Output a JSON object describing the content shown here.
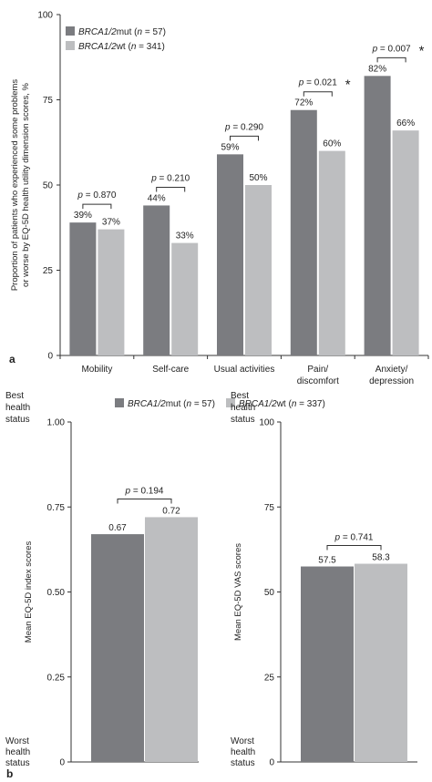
{
  "chart_data": [
    {
      "panel": "a",
      "type": "bar",
      "ylabel": [
        "Proportion of patients who experienced some problems",
        "or worse by EQ-5D health utility dimension scores, %"
      ],
      "ylim": [
        0,
        100
      ],
      "yticks": [
        "0",
        "25",
        "50",
        "75",
        "100"
      ],
      "categories": [
        [
          "Mobility"
        ],
        [
          "Self-care"
        ],
        [
          "Usual activities"
        ],
        [
          "Pain/",
          "discomfort"
        ],
        [
          "Anxiety/",
          "depression"
        ]
      ],
      "legend_placement": "top-left",
      "series": [
        {
          "name": "BRCA1/2mut",
          "n_label": "(n = 57)",
          "color": "#7b7c80",
          "values": [
            39,
            44,
            59,
            72,
            82
          ],
          "labels": [
            "39%",
            "44%",
            "59%",
            "72%",
            "82%"
          ]
        },
        {
          "name": "BRCA1/2wt",
          "n_label": "(n = 341)",
          "color": "#bdbec0",
          "values": [
            37,
            33,
            50,
            60,
            66
          ],
          "labels": [
            "37%",
            "33%",
            "50%",
            "60%",
            "66%"
          ]
        }
      ],
      "pvalues": [
        "p = 0.870",
        "p = 0.210",
        "p = 0.290",
        "p = 0.021",
        "p = 0.007"
      ],
      "significance_mark": [
        "",
        "",
        "",
        "*",
        "*"
      ]
    },
    {
      "panel": "b",
      "type": "bar",
      "legend": [
        {
          "name": "BRCA1/2mut",
          "n_label": "(n = 57)",
          "color": "#7b7c80"
        },
        {
          "name": "BRCA1/2wt",
          "n_label": "(n = 337)",
          "color": "#bdbec0"
        }
      ],
      "subcharts": [
        {
          "ylabel": "Mean EQ-5D index scores",
          "ylim": [
            0,
            1
          ],
          "yticks": [
            "0",
            "0.25",
            "0.50",
            "0.75",
            "1.00"
          ],
          "top_label": [
            "Best",
            "health",
            "status"
          ],
          "bottom_label": [
            "Worst",
            "health",
            "status"
          ],
          "values": [
            0.67,
            0.72
          ],
          "labels": [
            "0.67",
            "0.72"
          ],
          "pvalue": "p = 0.194"
        },
        {
          "ylabel": "Mean EQ-5D VAS scores",
          "ylim": [
            0,
            100
          ],
          "yticks": [
            "0",
            "25",
            "50",
            "75",
            "100"
          ],
          "top_label": [
            "Best",
            "health",
            "status"
          ],
          "bottom_label": [
            "Worst",
            "health",
            "status"
          ],
          "values": [
            57.5,
            58.3
          ],
          "labels": [
            "57.5",
            "58.3"
          ],
          "pvalue": "p = 0.741"
        }
      ]
    }
  ],
  "panel_labels": [
    "a",
    "b"
  ]
}
